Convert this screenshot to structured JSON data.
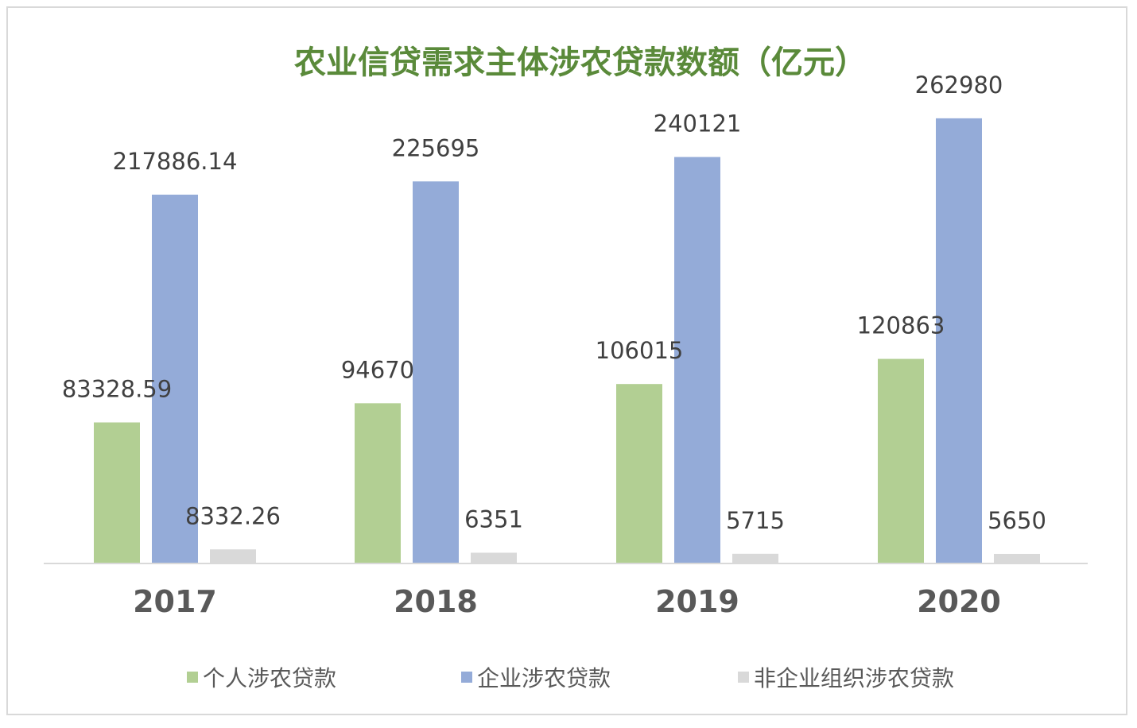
{
  "chart_data": {
    "type": "bar",
    "title": "农业信贷需求主体涉农贷款数额（亿元）",
    "categories": [
      "2017",
      "2018",
      "2019",
      "2020"
    ],
    "series": [
      {
        "name": "个人涉农贷款",
        "color": "#b2cf93",
        "values": [
          83328.59,
          94670,
          106015,
          120863
        ],
        "labels": [
          "83328.59",
          "94670",
          "106015",
          "120863"
        ]
      },
      {
        "name": "企业涉农贷款",
        "color": "#94abd8",
        "values": [
          217886.14,
          225695,
          240121,
          262980
        ],
        "labels": [
          "217886.14",
          "225695",
          "240121",
          "262980"
        ]
      },
      {
        "name": "非企业组织涉农贷款",
        "color": "#d9d9d9",
        "values": [
          8332.26,
          6351,
          5715,
          5650
        ],
        "labels": [
          "8332.26",
          "6351",
          "5715",
          "5650"
        ]
      }
    ],
    "ylim": [
      0,
      300000
    ],
    "grid": false,
    "legend_position": "bottom",
    "title_color": "#5a8a3a",
    "label_color": "#404040",
    "axis_color": "#d9d9d9"
  }
}
